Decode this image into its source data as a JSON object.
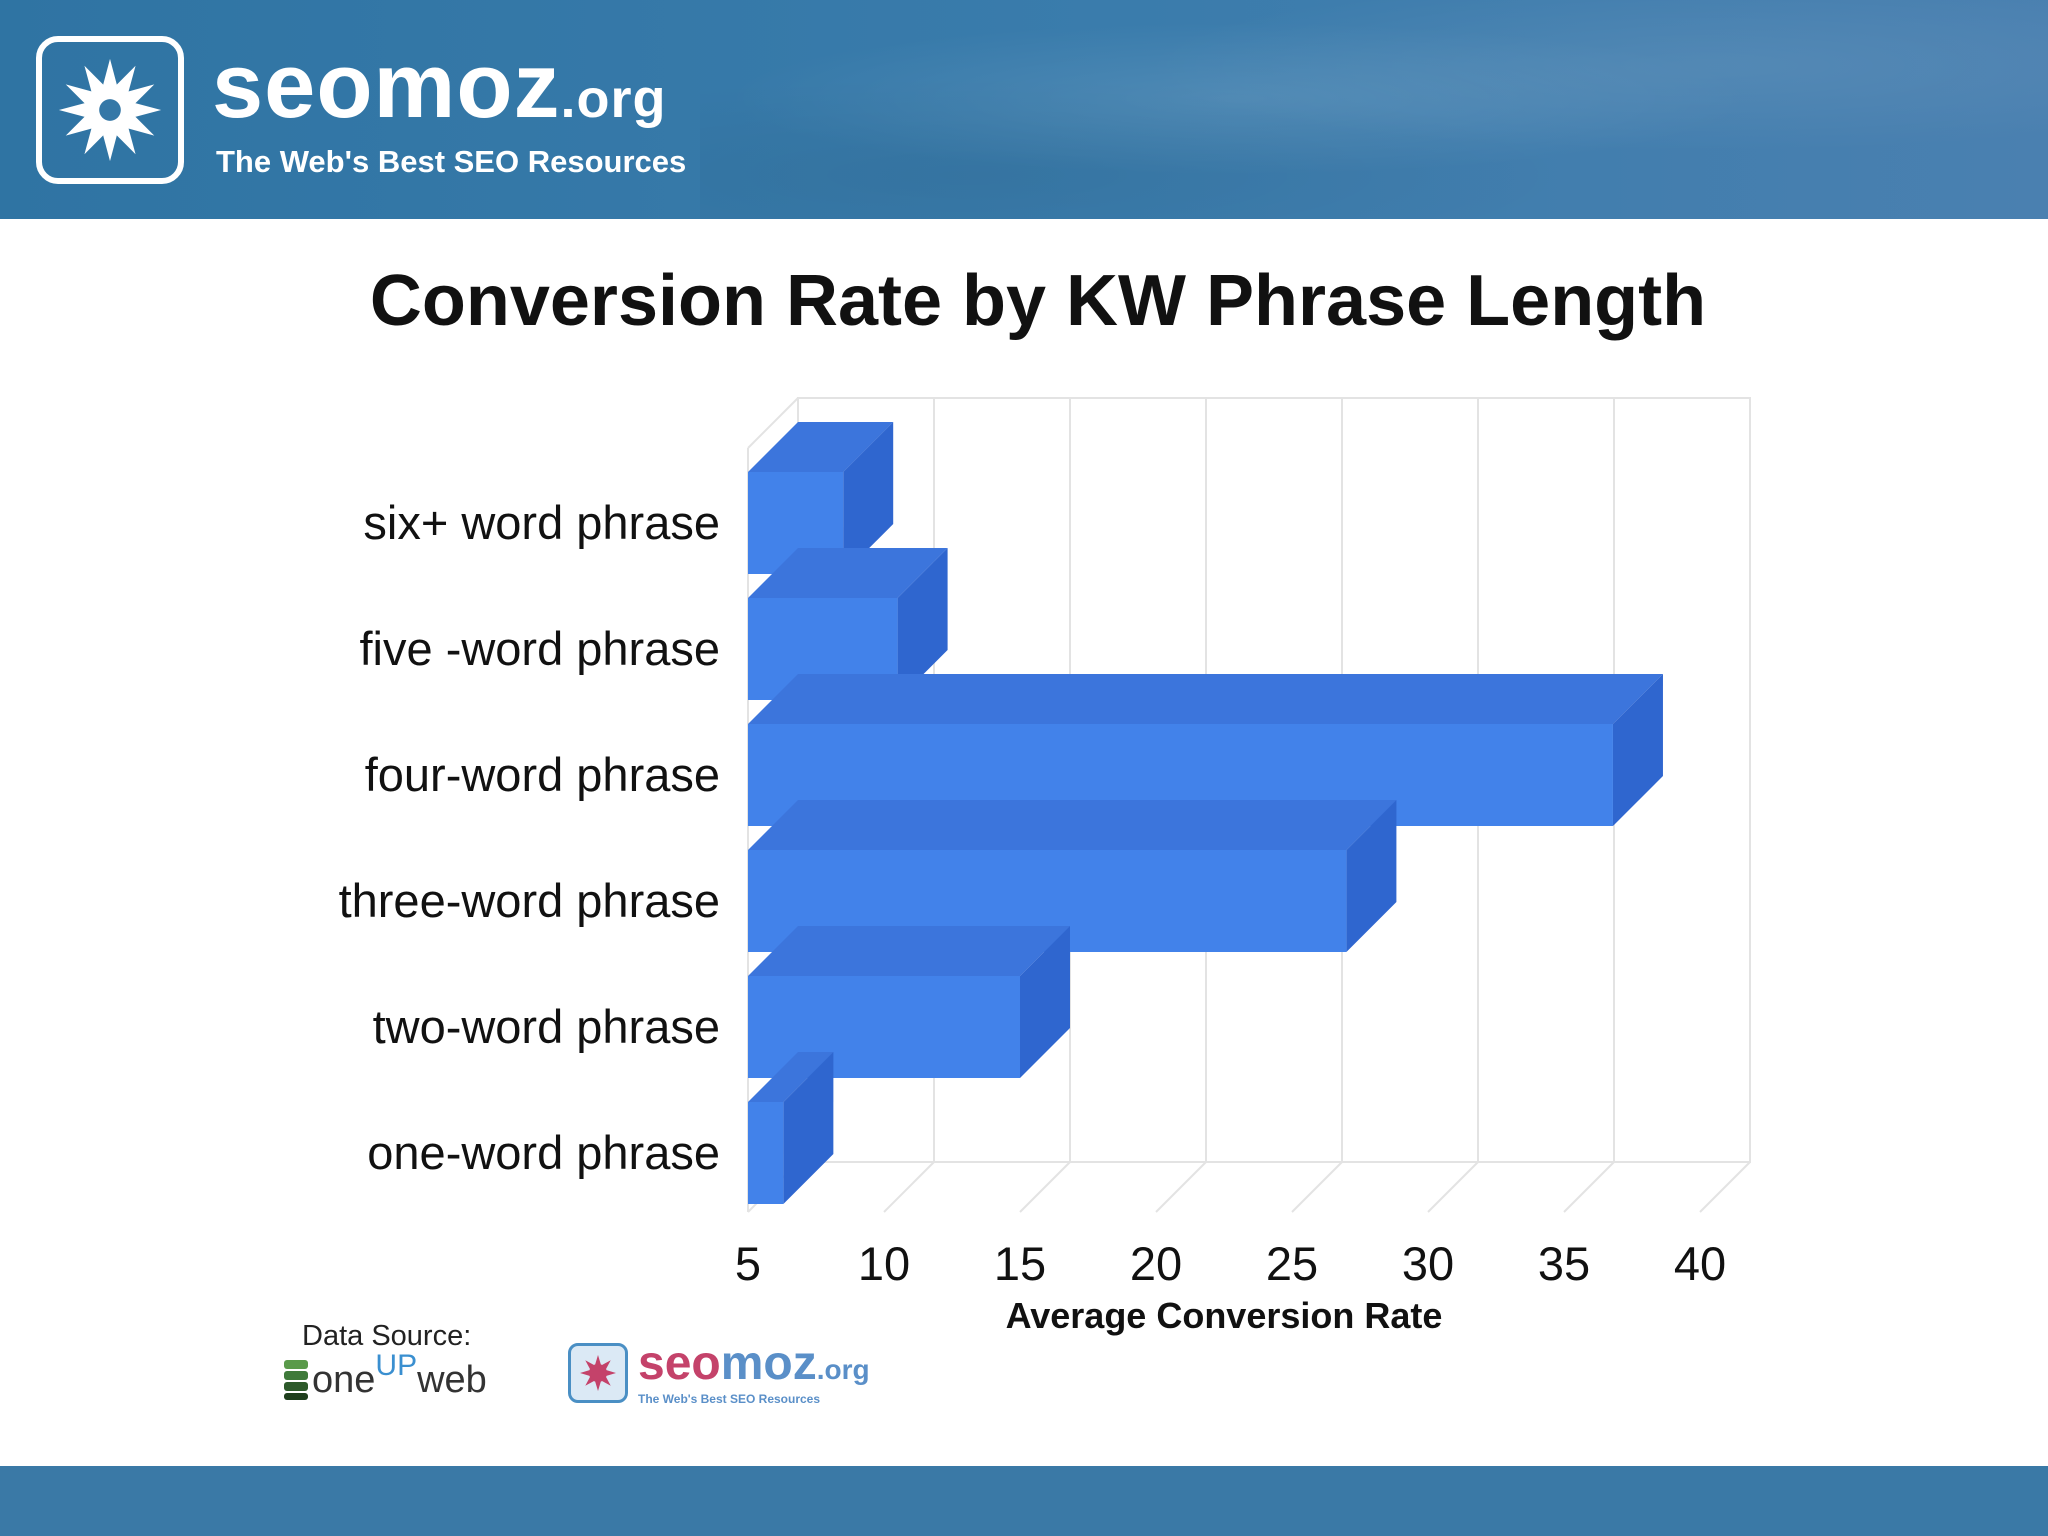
{
  "header": {
    "brand_name": "seomoz",
    "brand_tld": ".org",
    "tagline": "The Web's Best SEO Resources",
    "logo_icon": "sun-star-icon",
    "background_color": "#3578a7"
  },
  "chart_data": {
    "type": "bar",
    "orientation": "horizontal",
    "style": "3d",
    "title": "Conversion Rate by KW Phrase Length",
    "xlabel": "Average Conversion Rate",
    "ylabel": "",
    "categories": [
      "one-word phrase",
      "two-word phrase",
      "three-word phrase",
      "four-word phrase",
      "five -word phrase",
      "six+ word phrase"
    ],
    "values": [
      6.3,
      15.0,
      27.0,
      36.8,
      10.5,
      8.5
    ],
    "xlim": [
      5,
      40
    ],
    "x_ticks": [
      5,
      10,
      15,
      20,
      25,
      30,
      35,
      40
    ],
    "grid": true,
    "legend": "none",
    "bar_color": "#4282ea"
  },
  "footer_sources": {
    "label": "Data Source:",
    "source1_prefix": "one",
    "source1_up": "UP",
    "source1_suffix": "web",
    "source2_name_a": "seo",
    "source2_name_b": "moz",
    "source2_tld": ".org",
    "source2_tagline": "The Web's Best SEO Resources"
  }
}
